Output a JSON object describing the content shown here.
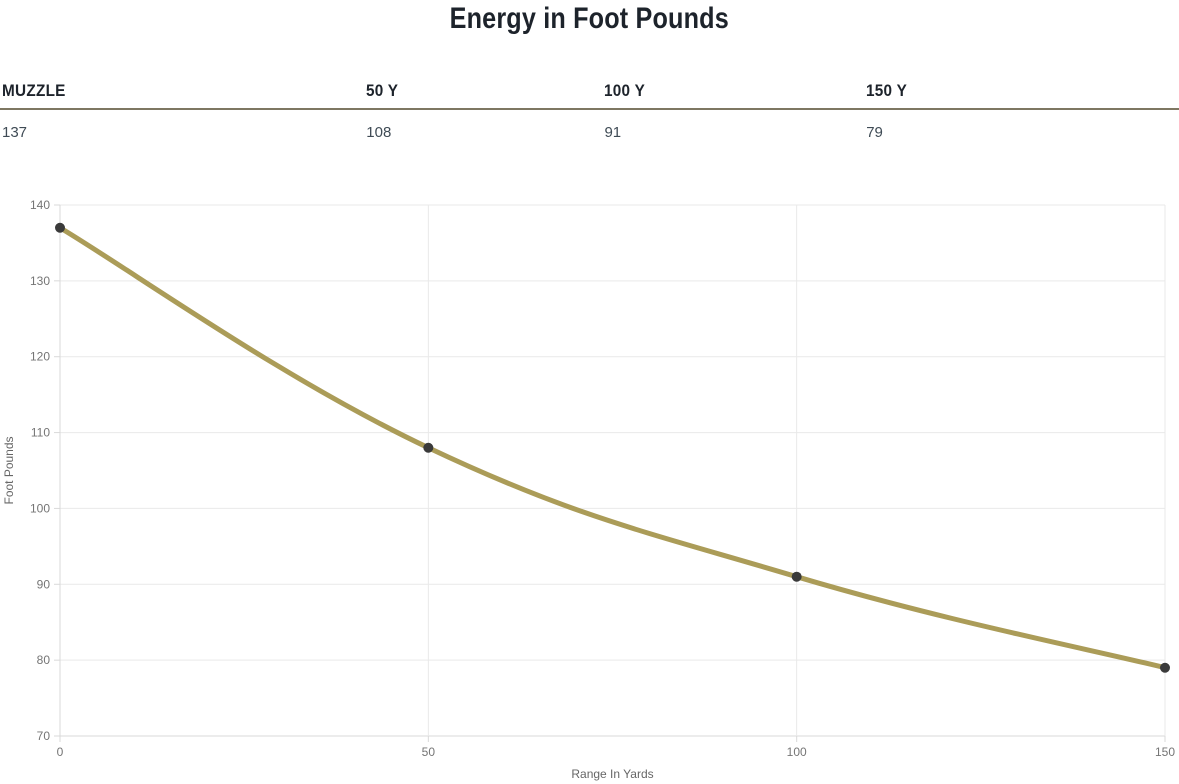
{
  "title": "Energy in Foot Pounds",
  "table": {
    "columns": [
      "MUZZLE",
      "50 Y",
      "100 Y",
      "150 Y"
    ],
    "values": [
      "137",
      "108",
      "91",
      "79"
    ]
  },
  "chart_data": {
    "type": "line",
    "x": [
      0,
      50,
      100,
      150
    ],
    "series": [
      {
        "name": "Energy in Foot Pounds",
        "values": [
          137,
          108,
          91,
          79
        ]
      }
    ],
    "title": "",
    "xlabel": "Range In Yards",
    "ylabel": "Foot Pounds",
    "xlim": [
      0,
      150
    ],
    "ylim": [
      70,
      140
    ],
    "xticks": [
      0,
      50,
      100,
      150
    ],
    "yticks": [
      70,
      80,
      90,
      100,
      110,
      120,
      130,
      140
    ],
    "grid": true,
    "legend": "none",
    "line_color": "#ab9c58",
    "marker_color": "#3a3a3a"
  },
  "colors": {
    "title_text": "#1d232b",
    "table_border": "#7e7762",
    "value_text": "#3f4b55",
    "grid_line": "#e9e9e9",
    "axis_line": "#d9d9d9",
    "tick_text": "#757575",
    "axis_title_text": "#666666"
  }
}
